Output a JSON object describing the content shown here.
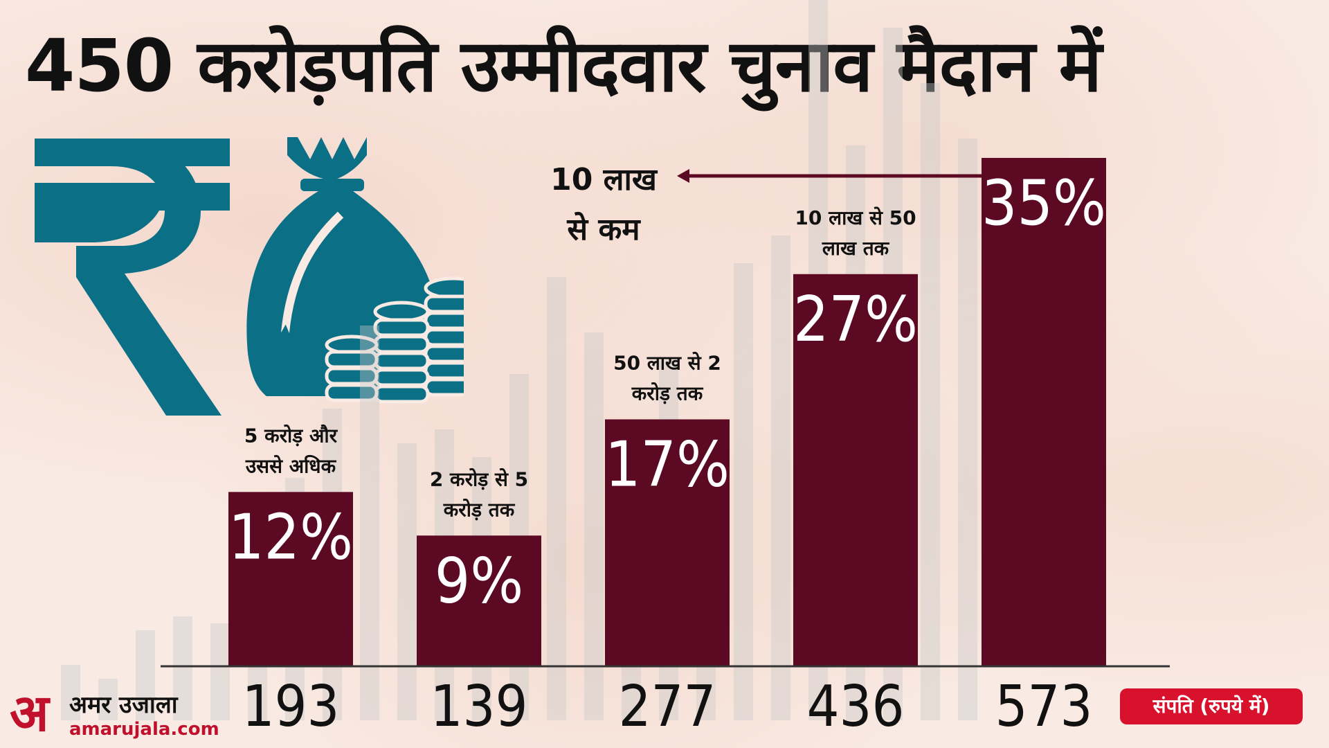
{
  "title": "450 करोड़पति उम्मीदवार चुनाव मैदान में",
  "logo": {
    "mark": "अ",
    "name": "अमर उजाला",
    "site": "amarujala.com"
  },
  "unit_badge": "संपति (रुपये में)",
  "colors": {
    "bar": "#5c0a23",
    "icon": "#0b6f86",
    "badge": "#d8112c",
    "ghost": "#c9c9c9"
  },
  "icons": [
    "rupee-icon",
    "money-bag-icon",
    "coin-stack-icon"
  ],
  "chart_data": {
    "type": "bar",
    "categories": [
      "5 करोड़ और उससे अधिक",
      "2 करोड़ से 5 करोड़ तक",
      "50 लाख से 2 करोड़ तक",
      "10 लाख से 50 लाख तक",
      "10 लाख से कम"
    ],
    "label_lines": [
      [
        "5 करोड़ और",
        "उससे अधिक"
      ],
      [
        "2 करोड़ से 5",
        "करोड़ तक"
      ],
      [
        "50 लाख से 2",
        "करोड़ तक"
      ],
      [
        "10 लाख से 50",
        "लाख तक"
      ],
      [
        "10 लाख",
        "से कम"
      ]
    ],
    "values": [
      12,
      9,
      17,
      27,
      35
    ],
    "value_labels": [
      "12%",
      "9%",
      "17%",
      "27%",
      "35%"
    ],
    "counts": [
      193,
      139,
      277,
      436,
      573
    ],
    "ylim": [
      0,
      35
    ]
  }
}
